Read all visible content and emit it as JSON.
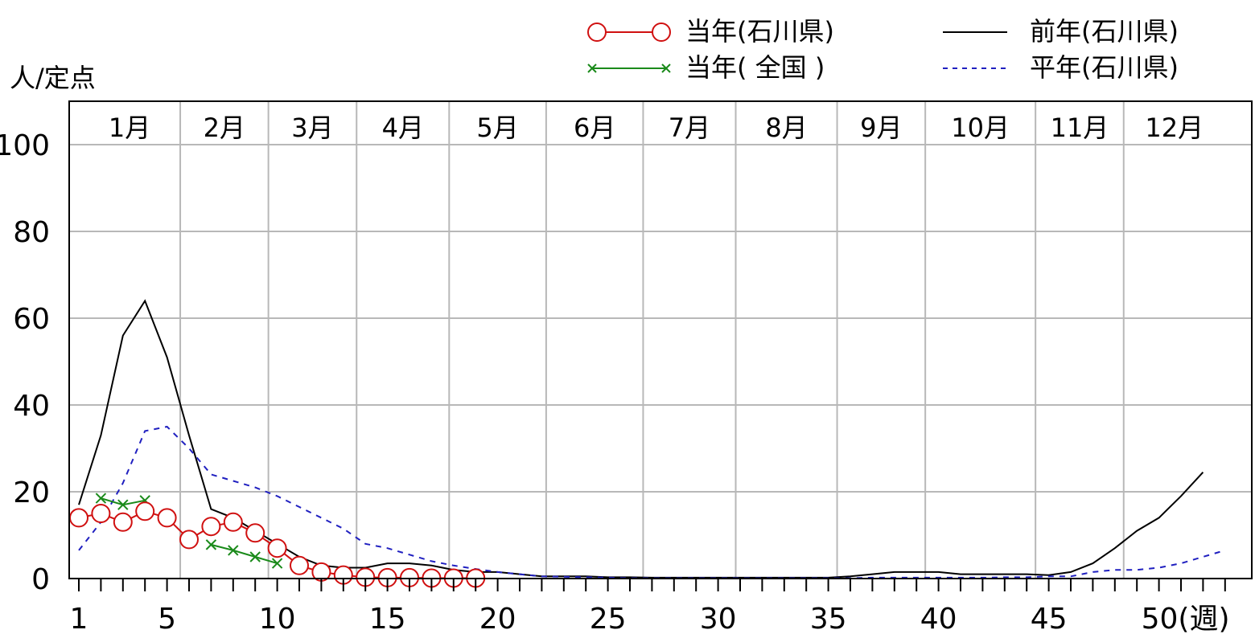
{
  "chart_data": {
    "type": "line",
    "ylabel": "人/定点",
    "xlabel": "",
    "ylim": [
      0,
      110
    ],
    "xlim": [
      1,
      53
    ],
    "y_ticks": [
      0,
      20,
      40,
      60,
      80,
      100
    ],
    "x_ticks": [
      {
        "x": 1,
        "label": "1"
      },
      {
        "x": 5,
        "label": "5"
      },
      {
        "x": 10,
        "label": "10"
      },
      {
        "x": 15,
        "label": "15"
      },
      {
        "x": 20,
        "label": "20"
      },
      {
        "x": 25,
        "label": "25"
      },
      {
        "x": 30,
        "label": "30"
      },
      {
        "x": 35,
        "label": "35"
      },
      {
        "x": 40,
        "label": "40"
      },
      {
        "x": 45,
        "label": "45"
      },
      {
        "x": 50,
        "label": "50(週)"
      }
    ],
    "months": [
      {
        "label": "1月",
        "start_week": 1,
        "end_week": 5.6
      },
      {
        "label": "2月",
        "start_week": 5.6,
        "end_week": 9.6
      },
      {
        "label": "3月",
        "start_week": 9.6,
        "end_week": 13.6
      },
      {
        "label": "4月",
        "start_week": 13.6,
        "end_week": 17.8
      },
      {
        "label": "5月",
        "start_week": 17.8,
        "end_week": 22.2
      },
      {
        "label": "6月",
        "start_week": 22.2,
        "end_week": 26.6
      },
      {
        "label": "7月",
        "start_week": 26.6,
        "end_week": 30.8
      },
      {
        "label": "8月",
        "start_week": 30.8,
        "end_week": 35.4
      },
      {
        "label": "9月",
        "start_week": 35.4,
        "end_week": 39.4
      },
      {
        "label": "10月",
        "start_week": 39.4,
        "end_week": 44.4
      },
      {
        "label": "11月",
        "start_week": 44.4,
        "end_week": 48.4
      },
      {
        "label": "12月",
        "start_week": 48.4,
        "end_week": 53
      }
    ],
    "grid": true,
    "legend": {
      "placement": "top-right",
      "entries": [
        {
          "label": "当年(石川県)",
          "style": "circle-line",
          "color": "#d01010"
        },
        {
          "label": "前年(石川県)",
          "style": "solid",
          "color": "#000000"
        },
        {
          "label": "当年( 全国 )",
          "style": "x-line",
          "color": "#1a8a1a"
        },
        {
          "label": "平年(石川県)",
          "style": "dashed",
          "color": "#2020c0"
        }
      ]
    },
    "series": [
      {
        "name": "当年(石川県)",
        "color": "#d01010",
        "marker": "circle",
        "x": [
          1,
          2,
          3,
          4,
          5,
          6,
          7,
          8,
          9,
          10,
          11,
          12,
          13,
          14,
          15,
          16,
          17,
          18,
          19
        ],
        "values": [
          14,
          15,
          13,
          15.5,
          14,
          9,
          12,
          13,
          10.5,
          7,
          3,
          1.5,
          0.8,
          0.3,
          0.2,
          0.2,
          0.1,
          0.1,
          0.1
        ]
      },
      {
        "name": "当年( 全国 )",
        "color": "#1a8a1a",
        "marker": "x",
        "x": [
          2,
          3,
          4,
          7,
          8,
          9,
          10
        ],
        "values": [
          18.5,
          17,
          18,
          7.8,
          6.5,
          5,
          3.5
        ]
      },
      {
        "name": "前年(石川県)",
        "color": "#000000",
        "style": "solid",
        "x": [
          1,
          2,
          3,
          4,
          5,
          6,
          7,
          8,
          9,
          10,
          11,
          12,
          13,
          14,
          15,
          16,
          17,
          18,
          19,
          20,
          21,
          22,
          23,
          24,
          25,
          26,
          27,
          28,
          29,
          30,
          31,
          32,
          33,
          34,
          35,
          36,
          37,
          38,
          39,
          40,
          41,
          42,
          43,
          44,
          45,
          46,
          47,
          48,
          49,
          50,
          51,
          52
        ],
        "values": [
          17,
          33,
          56,
          64,
          51,
          33,
          16,
          14,
          11,
          8,
          5,
          3,
          2.5,
          2.5,
          3.5,
          3.5,
          3,
          2,
          1.5,
          1.5,
          1,
          0.5,
          0.5,
          0.5,
          0.3,
          0.3,
          0.2,
          0.2,
          0.2,
          0.2,
          0.2,
          0.2,
          0.2,
          0.2,
          0.2,
          0.5,
          1,
          1.5,
          1.5,
          1.5,
          1,
          1,
          1,
          1,
          0.8,
          1.5,
          3.5,
          7,
          11,
          14,
          19,
          24.5
        ]
      },
      {
        "name": "平年(石川県)",
        "color": "#2020c0",
        "style": "dashed",
        "x": [
          1,
          2,
          3,
          4,
          5,
          6,
          7,
          8,
          9,
          10,
          11,
          12,
          13,
          14,
          15,
          16,
          17,
          18,
          19,
          20,
          21,
          22,
          23,
          24,
          25,
          26,
          27,
          28,
          29,
          30,
          31,
          32,
          33,
          34,
          35,
          36,
          37,
          38,
          39,
          40,
          41,
          42,
          43,
          44,
          45,
          46,
          47,
          48,
          49,
          50,
          51,
          52,
          53
        ],
        "values": [
          6.5,
          13,
          22,
          34,
          35,
          30,
          24,
          22.5,
          21,
          19,
          16.5,
          14,
          11.5,
          8,
          7,
          5.5,
          4,
          3,
          2.2,
          1.5,
          1,
          0.5,
          0.4,
          0.3,
          0.2,
          0.1,
          0.1,
          0.1,
          0.1,
          0.1,
          0.1,
          0.1,
          0.1,
          0.1,
          0.1,
          0.1,
          0.2,
          0.2,
          0.2,
          0.2,
          0.2,
          0.2,
          0.3,
          0.3,
          0.5,
          0.5,
          1.5,
          2,
          2,
          2.5,
          3.5,
          5,
          6.5
        ]
      }
    ]
  }
}
